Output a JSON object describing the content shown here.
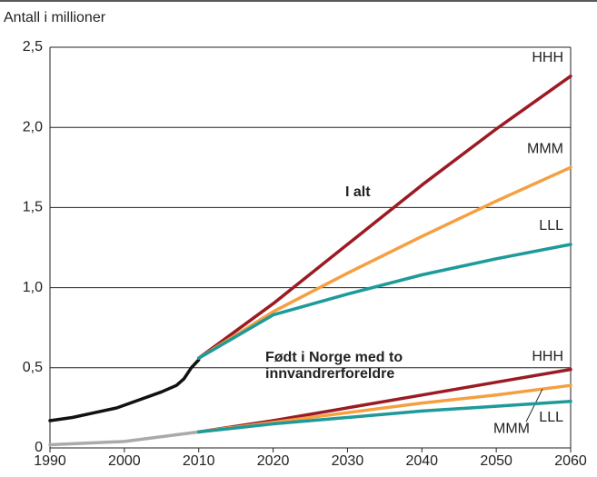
{
  "chart_data": {
    "type": "line",
    "y_label": "Antall i millioner",
    "xlim": [
      1990,
      2060
    ],
    "xticks": [
      1990,
      2000,
      2010,
      2020,
      2030,
      2040,
      2050,
      2060
    ],
    "ylim": [
      0,
      2.5
    ],
    "yticks": [
      0,
      {
        "value": 0.5,
        "label": "0,5"
      },
      {
        "value": 1.0,
        "label": "1,0"
      },
      {
        "value": 1.5,
        "label": "1,5"
      },
      {
        "value": 2.0,
        "label": "2,0"
      },
      {
        "value": 2.5,
        "label": "2,5"
      }
    ],
    "grid": true,
    "annotations": [
      {
        "text": [
          "I alt"
        ]
      },
      {
        "text": [
          "Født i Norge med to",
          "innvandrerforeldre"
        ]
      }
    ],
    "series": [
      {
        "color": "#111111",
        "x": [
          1990,
          1993,
          1996,
          1999,
          2002,
          2005,
          2007,
          2008,
          2009,
          2010
        ],
        "values": [
          0.17,
          0.19,
          0.22,
          0.25,
          0.3,
          0.35,
          0.39,
          0.43,
          0.5,
          0.55
        ]
      },
      {
        "name": "HHH",
        "color": "#9b1b24",
        "x": [
          2010,
          2020,
          2030,
          2040,
          2050,
          2060
        ],
        "values": [
          0.56,
          0.9,
          1.27,
          1.64,
          1.99,
          2.32
        ]
      },
      {
        "name": "MMM",
        "color": "#f5a040",
        "x": [
          2010,
          2020,
          2030,
          2040,
          2050,
          2060
        ],
        "values": [
          0.56,
          0.85,
          1.09,
          1.32,
          1.54,
          1.75
        ]
      },
      {
        "name": "LLL",
        "color": "#1e9a9a",
        "x": [
          2010,
          2020,
          2030,
          2040,
          2050,
          2060
        ],
        "values": [
          0.56,
          0.83,
          0.96,
          1.08,
          1.18,
          1.27
        ]
      },
      {
        "color": "#aaaaaa",
        "x": [
          1990,
          2000,
          2010
        ],
        "values": [
          0.02,
          0.04,
          0.1
        ]
      },
      {
        "name": "HHH",
        "color": "#9b1b24",
        "x": [
          2010,
          2020,
          2030,
          2040,
          2050,
          2060
        ],
        "values": [
          0.1,
          0.17,
          0.25,
          0.33,
          0.41,
          0.49
        ]
      },
      {
        "name": "MMM",
        "color": "#f5a040",
        "x": [
          2010,
          2020,
          2030,
          2040,
          2050,
          2060
        ],
        "values": [
          0.1,
          0.16,
          0.22,
          0.28,
          0.33,
          0.39
        ]
      },
      {
        "name": "LLL",
        "color": "#1e9a9a",
        "x": [
          2010,
          2020,
          2030,
          2040,
          2050,
          2060
        ],
        "values": [
          0.1,
          0.15,
          0.19,
          0.23,
          0.26,
          0.29
        ]
      }
    ]
  }
}
